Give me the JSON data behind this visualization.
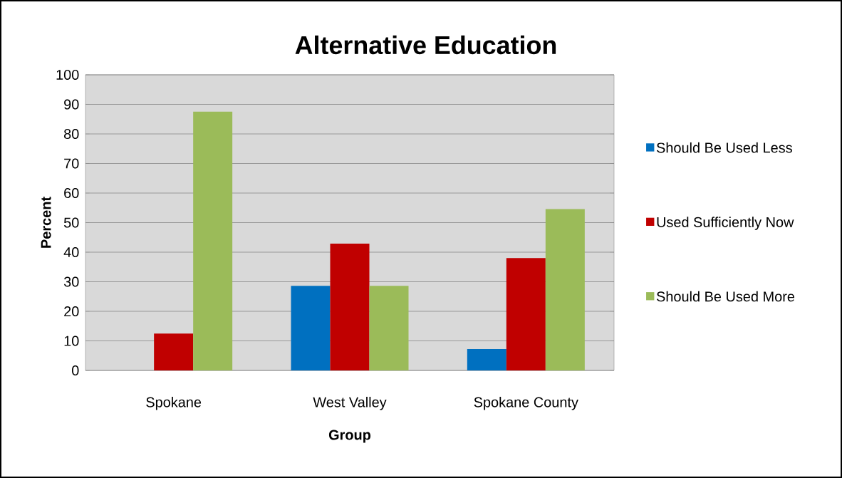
{
  "chart_data": {
    "type": "bar",
    "title": "Alternative Education",
    "xlabel": "Group",
    "ylabel": "Percent",
    "categories": [
      "Spokane",
      "West Valley",
      "Spokane County"
    ],
    "series": [
      {
        "name": "Should Be Used Less",
        "color": "#0070c0",
        "values": [
          0,
          28.6,
          7.2
        ]
      },
      {
        "name": "Used Sufficiently Now",
        "color": "#c00000",
        "values": [
          12.5,
          42.9,
          38.0
        ]
      },
      {
        "name": "Should Be Used More",
        "color": "#9bbb59",
        "values": [
          87.5,
          28.6,
          54.6
        ]
      }
    ],
    "ylim": [
      0,
      100
    ],
    "yticks": [
      0,
      10,
      20,
      30,
      40,
      50,
      60,
      70,
      80,
      90,
      100
    ],
    "grid": "y",
    "legend": "right"
  }
}
